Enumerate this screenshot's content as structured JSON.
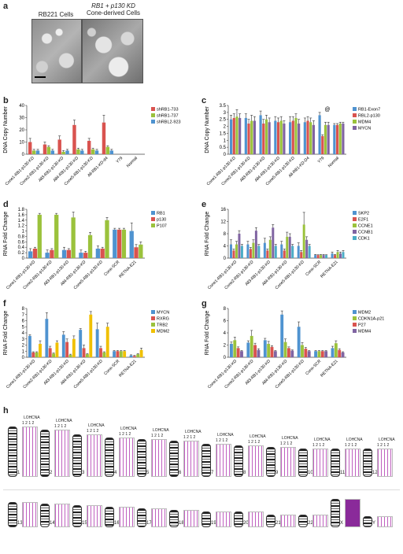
{
  "panels": {
    "a": "a",
    "b": "b",
    "c": "c",
    "d": "d",
    "e": "e",
    "f": "f",
    "g": "g",
    "h": "h"
  },
  "micrographs": {
    "left_label": "RB221 Cells",
    "right_label_line1": "RB1 + p130 KD",
    "right_label_line2": "Cone-derived Cells"
  },
  "karyotype": {
    "header_labels": [
      "LOH",
      "CNA"
    ],
    "header_numbers": "1 2 1 2",
    "chromosomes": [
      "1",
      "2",
      "3",
      "4",
      "5",
      "6",
      "7",
      "8",
      "9",
      "10",
      "11",
      "12",
      "13",
      "14",
      "15",
      "16",
      "17",
      "18",
      "19",
      "20",
      "21",
      "22",
      "X",
      "Y"
    ]
  },
  "chart_data": [
    {
      "panel": "b",
      "type": "bar",
      "ylabel": "DNA Copy Number",
      "ylim": [
        0,
        40
      ],
      "yticks": [
        0,
        10,
        20,
        30,
        40
      ],
      "categories": [
        "Cone1-RB1-p130-KD",
        "Cone2-RB1-p130-KD",
        "All3-RB1-p130-KD",
        "All4-RB1-p130-KD",
        "Cone5-RB1-p130-KD",
        "All-RB1-KD-d4",
        "Y79",
        "Normal"
      ],
      "series": [
        {
          "name": "shRB1-733",
          "color": "#d9534f",
          "values": [
            10,
            8,
            12,
            24,
            11,
            26,
            0,
            0
          ]
        },
        {
          "name": "shRB1-737",
          "color": "#9bc23c",
          "values": [
            3,
            6,
            2,
            4,
            4,
            6,
            0,
            0
          ]
        },
        {
          "name": "shRBL2-923",
          "color": "#4f93d0",
          "values": [
            3,
            3,
            3,
            3,
            3,
            3,
            0,
            0
          ]
        }
      ],
      "errors": [
        [
          3,
          2,
          3,
          4,
          2,
          6,
          0,
          0
        ],
        [
          1,
          1,
          1,
          1,
          1,
          1,
          0,
          0
        ],
        [
          1,
          1,
          1,
          1,
          1,
          1,
          0,
          0
        ]
      ]
    },
    {
      "panel": "c",
      "type": "bar",
      "ylabel": "DNA Copy Number",
      "ylim": [
        0,
        3.5
      ],
      "yticks": [
        0,
        0.5,
        1,
        1.5,
        2,
        2.5,
        3,
        3.5
      ],
      "categories": [
        "Cone1-RB1-p130-KD",
        "Cone2-RB1-p130-KD",
        "All3-RB1-p130-KD",
        "All4-RB1-p130-KD",
        "Cone5-RB1-p130-KD",
        "All-RB1-KD-D4",
        "Y79",
        "Normal"
      ],
      "annotation": {
        "text": "@",
        "category_index": 6
      },
      "series": [
        {
          "name": "RB1-Exon7",
          "color": "#4f93d0",
          "values": [
            2.5,
            2.6,
            2.8,
            2.4,
            2.3,
            2.3,
            2.8,
            2.1
          ]
        },
        {
          "name": "RBL2-p130",
          "color": "#d9534f",
          "values": [
            2.6,
            2.2,
            2.2,
            2.3,
            2.4,
            2.4,
            1.3,
            2.1
          ]
        },
        {
          "name": "MDM4",
          "color": "#9bc23c",
          "values": [
            2.7,
            2.4,
            2.5,
            2.4,
            2.6,
            2.3,
            2.1,
            2.2
          ]
        },
        {
          "name": "MYCN",
          "color": "#8064a2",
          "values": [
            2.6,
            2.4,
            2.3,
            2.2,
            2.2,
            2.1,
            2.1,
            2.2
          ]
        }
      ],
      "errors": [
        [
          0.3,
          0.3,
          0.3,
          0.3,
          0.4,
          0.3,
          0.2,
          0.1
        ],
        [
          0.3,
          0.3,
          0.3,
          0.3,
          0.3,
          0.3,
          0.1,
          0.1
        ],
        [
          0.5,
          0.4,
          0.3,
          0.3,
          0.3,
          0.3,
          0.2,
          0.1
        ],
        [
          0.3,
          0.3,
          0.3,
          0.2,
          0.3,
          0.3,
          0.2,
          0.1
        ]
      ]
    },
    {
      "panel": "d",
      "type": "bar",
      "ylabel": "RNA Fold Change",
      "ylim": [
        0,
        1.8
      ],
      "yticks": [
        0,
        0.2,
        0.4,
        0.6,
        0.8,
        1,
        1.2,
        1.4,
        1.6,
        1.8
      ],
      "categories": [
        "Cone1-RB1-p130-KD",
        "Cone2-RB1-p130-KD",
        "All3-RB1-p130-KD",
        "All4-RB1-p130-KD",
        "Cone5-RB1-p130-KD",
        "Cone-SCR",
        "RETNA-E21"
      ],
      "series": [
        {
          "name": "RB1",
          "color": "#4f93d0",
          "values": [
            0.25,
            0.2,
            0.3,
            0.2,
            0.35,
            1.05,
            1.0
          ]
        },
        {
          "name": "p130",
          "color": "#d9534f",
          "values": [
            0.35,
            0.3,
            0.3,
            0.2,
            0.35,
            1.05,
            0.4
          ]
        },
        {
          "name": "P107",
          "color": "#9bc23c",
          "values": [
            1.6,
            1.6,
            1.5,
            0.85,
            1.4,
            1.05,
            0.5
          ]
        }
      ],
      "errors": [
        [
          0.1,
          0.1,
          0.1,
          0.1,
          0.1,
          0.05,
          0.3
        ],
        [
          0.05,
          0.05,
          0.05,
          0.05,
          0.05,
          0.05,
          0.1
        ],
        [
          0.05,
          0.05,
          0.2,
          0.1,
          0.1,
          0.05,
          0.1
        ]
      ]
    },
    {
      "panel": "e",
      "type": "bar",
      "ylabel": "RNA Fold Change",
      "ylim": [
        0,
        16
      ],
      "yticks": [
        0,
        4,
        8,
        12,
        16
      ],
      "categories": [
        "Cone1-RB1-p130-KD",
        "Cone2-RB1-p130-KD",
        "All3-RB1-p130-KD",
        "All4-RB1-p130-KD",
        "Cone5-RB1-p130-KD",
        "Cone-SCR",
        "RETNA-E21"
      ],
      "series": [
        {
          "name": "SKP2",
          "color": "#4f93d0",
          "values": [
            4.5,
            4.5,
            5,
            4.5,
            4,
            1,
            1.5
          ]
        },
        {
          "name": "E2F1",
          "color": "#d9534f",
          "values": [
            2.5,
            3,
            2.5,
            2.5,
            2,
            1,
            1
          ]
        },
        {
          "name": "CCNE1",
          "color": "#9bc23c",
          "values": [
            4.5,
            5,
            6,
            7,
            11,
            1,
            2
          ]
        },
        {
          "name": "CCNB1",
          "color": "#8064a2",
          "values": [
            8,
            9,
            10,
            7,
            6,
            1,
            1.5
          ]
        },
        {
          "name": "CDK1",
          "color": "#4bacc6",
          "values": [
            4,
            4,
            4,
            4,
            4,
            1,
            2
          ]
        }
      ],
      "errors": [
        [
          1.5,
          1,
          1.5,
          1,
          1,
          0.2,
          0.5
        ],
        [
          0.5,
          0.5,
          0.5,
          0.5,
          0.5,
          0.1,
          0.2
        ],
        [
          1,
          1,
          1,
          1.5,
          4,
          0.2,
          0.5
        ],
        [
          1,
          1,
          1,
          1,
          1,
          0.2,
          0.5
        ],
        [
          0.5,
          0.5,
          0.5,
          0.5,
          0.5,
          0.1,
          0.5
        ]
      ]
    },
    {
      "panel": "f",
      "type": "bar",
      "ylabel": "RNA Fold Change",
      "ylim": [
        0,
        8
      ],
      "yticks": [
        0,
        1,
        2,
        3,
        4,
        5,
        6,
        7,
        8
      ],
      "categories": [
        "Cone1-RB1-p130-KD",
        "Cone2-RB1-p130-KD",
        "All3-RB1-p130-KD",
        "All4-RB1-p130-KD",
        "Cone5-RB1-p130-KD",
        "Cone-SCR",
        "RETNA-E21"
      ],
      "series": [
        {
          "name": "MYCN",
          "color": "#4f93d0",
          "values": [
            3.5,
            6.3,
            3.7,
            4.5,
            4.6,
            1,
            0.3
          ]
        },
        {
          "name": "RXRG",
          "color": "#d9534f",
          "values": [
            0.8,
            1.5,
            2.5,
            1.5,
            1.5,
            1,
            0.2
          ]
        },
        {
          "name": "TRB2",
          "color": "#9bc23c",
          "values": [
            0.8,
            0.6,
            0.4,
            0.5,
            0.8,
            1,
            0.5
          ]
        },
        {
          "name": "MDM2",
          "color": "#f0c000",
          "values": [
            2.2,
            2.4,
            3.0,
            7.0,
            5.0,
            1,
            1.2
          ]
        }
      ],
      "errors": [
        [
          0.2,
          1.0,
          0.5,
          0.2,
          1.0,
          0.1,
          0.1
        ],
        [
          0.1,
          0.3,
          0.5,
          0.5,
          0.3,
          0.1,
          0.1
        ],
        [
          0.1,
          0.1,
          0.1,
          0.1,
          0.1,
          0.1,
          0.1
        ],
        [
          0.5,
          0.3,
          0.5,
          0.5,
          0.6,
          0.1,
          0.3
        ]
      ]
    },
    {
      "panel": "g",
      "type": "bar",
      "ylabel": "RNA Fold Change",
      "ylim": [
        0,
        8
      ],
      "yticks": [
        0,
        2,
        4,
        6,
        8
      ],
      "categories": [
        "Cone1-RB1-p130-KD",
        "Cone2-RB1-p130-KD",
        "All3-RB1-p130-KD",
        "All4-RB1-p130-KD",
        "Cone5-RB1-p130-KD",
        "Cone-SCR",
        "RETNA-E21"
      ],
      "series": [
        {
          "name": "MDM2",
          "color": "#4f93d0",
          "values": [
            2.2,
            2.4,
            2.8,
            7.0,
            5.0,
            1,
            1.5
          ]
        },
        {
          "name": "CDKN1A-p21",
          "color": "#9bc23c",
          "values": [
            2.8,
            3.5,
            2.2,
            2.5,
            2.0,
            1,
            2.3
          ]
        },
        {
          "name": "P27",
          "color": "#d9534f",
          "values": [
            1.5,
            2.0,
            1.7,
            1.5,
            1.4,
            1,
            1.2
          ]
        },
        {
          "name": "MDM4",
          "color": "#8064a2",
          "values": [
            1.0,
            1.2,
            1.0,
            1.1,
            1.0,
            1,
            0.8
          ]
        }
      ],
      "errors": [
        [
          0.3,
          0.3,
          0.3,
          0.6,
          0.8,
          0.1,
          0.3
        ],
        [
          0.5,
          0.9,
          0.4,
          0.5,
          0.4,
          0.1,
          0.4
        ],
        [
          0.2,
          0.3,
          0.2,
          0.2,
          0.2,
          0.1,
          0.2
        ],
        [
          0.1,
          0.2,
          0.1,
          0.1,
          0.1,
          0.1,
          0.1
        ]
      ]
    }
  ]
}
